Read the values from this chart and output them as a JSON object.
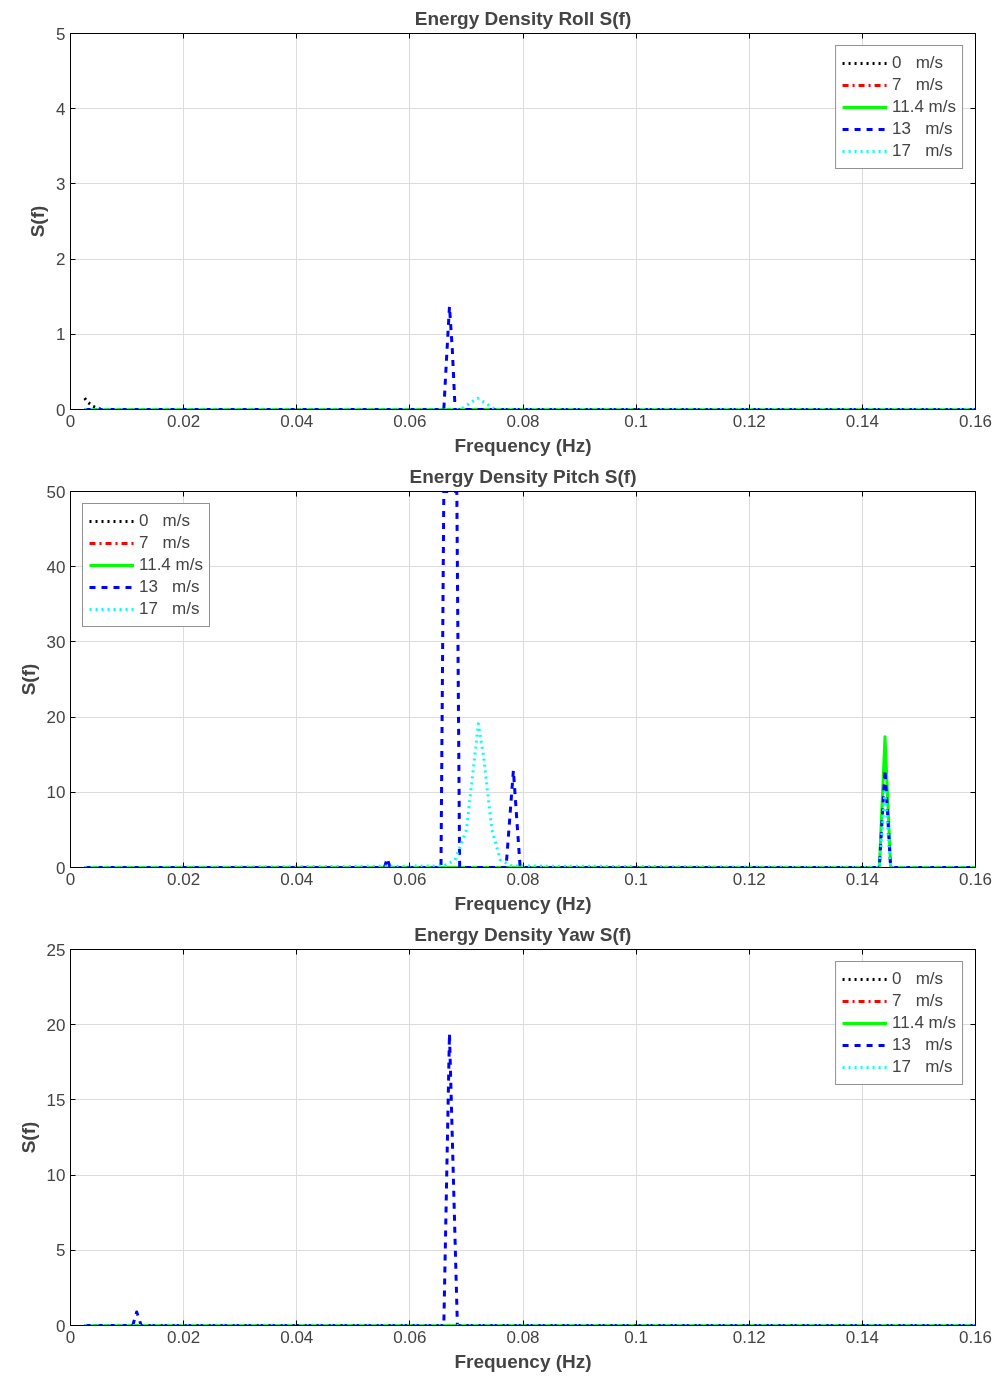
{
  "chart_data": [
    {
      "type": "line",
      "title": "Energy Density Roll S(f)",
      "xlabel": "Frequency (Hz)",
      "ylabel": "S(f)",
      "xlim": [
        0,
        0.16
      ],
      "ylim": [
        0,
        5
      ],
      "xticks": [
        0,
        0.02,
        0.04,
        0.06,
        0.08,
        0.1,
        0.12,
        0.14,
        0.16
      ],
      "yticks": [
        0,
        1,
        2,
        3,
        4,
        5
      ],
      "grid": true,
      "legend": "top right",
      "marker": "none",
      "series": [
        {
          "name": "0   m/s",
          "color": "#000000",
          "line_style": "dotted",
          "x": [
            0.0025,
            0.003,
            0.004,
            0.005,
            0.006
          ],
          "values": [
            0.15,
            0.1,
            0.04,
            0.01,
            0
          ]
        },
        {
          "name": "7   m/s",
          "color": "#ff0000",
          "line_style": "dashdot"
        },
        {
          "name": "11.4 m/s",
          "color": "#00ff00",
          "line_style": "solid",
          "x": [
            0.0025,
            0.16
          ],
          "values": [
            0,
            0
          ]
        },
        {
          "name": "13   m/s",
          "color": "#0000ff",
          "line_style": "dashed",
          "x": [
            0.0025,
            0.066,
            0.0665,
            0.067,
            0.0675,
            0.068,
            0.16
          ],
          "values": [
            0,
            0,
            0.7,
            1.37,
            0.8,
            0,
            0
          ]
        },
        {
          "name": "17   m/s",
          "color": "#00ffff",
          "line_style": "dotted",
          "x": [
            0.0025,
            0.069,
            0.0705,
            0.072,
            0.0735,
            0.075,
            0.16
          ],
          "values": [
            0,
            0,
            0.08,
            0.15,
            0.08,
            0,
            0
          ]
        }
      ]
    },
    {
      "type": "line",
      "title": "Energy Density Pitch S(f)",
      "xlabel": "Frequency (Hz)",
      "ylabel": "S(f)",
      "xlim": [
        0,
        0.16
      ],
      "ylim": [
        0,
        50
      ],
      "xticks": [
        0,
        0.02,
        0.04,
        0.06,
        0.08,
        0.1,
        0.12,
        0.14,
        0.16
      ],
      "yticks": [
        0,
        10,
        20,
        30,
        40,
        50
      ],
      "grid": true,
      "legend": "top left",
      "marker": "none",
      "series": [
        {
          "name": "0   m/s",
          "color": "#000000",
          "line_style": "dotted"
        },
        {
          "name": "7   m/s",
          "color": "#ff0000",
          "line_style": "dashdot"
        },
        {
          "name": "11.4 m/s",
          "color": "#00ff00",
          "line_style": "solid",
          "x": [
            0.0025,
            0.143,
            0.144,
            0.145,
            0.16
          ],
          "values": [
            0,
            0,
            17.4,
            0,
            0
          ]
        },
        {
          "name": "13   m/s",
          "color": "#0000ff",
          "line_style": "dashed",
          "x": [
            0.0025,
            0.0555,
            0.056,
            0.0565,
            0.0655,
            0.066,
            0.0683,
            0.0688,
            0.077,
            0.0783,
            0.0795,
            0.143,
            0.144,
            0.145,
            0.16
          ],
          "values": [
            0,
            0,
            1.2,
            0,
            0,
            50,
            50,
            0,
            0,
            12.9,
            0,
            0,
            13,
            0,
            0
          ]
        },
        {
          "name": "17   m/s",
          "color": "#00ffff",
          "line_style": "dotted",
          "x": [
            0.0025,
            0.066,
            0.068,
            0.07,
            0.0715,
            0.0721,
            0.073,
            0.0745,
            0.076,
            0.078,
            0.143,
            0.144,
            0.145,
            0.16
          ],
          "values": [
            0,
            0.2,
            1,
            5,
            15,
            19.1,
            15,
            5,
            1,
            0.2,
            0,
            10,
            0,
            0
          ]
        }
      ]
    },
    {
      "type": "line",
      "title": "Energy Density Yaw S(f)",
      "xlabel": "Frequency (Hz)",
      "ylabel": "S(f)",
      "xlim": [
        0,
        0.16
      ],
      "ylim": [
        0,
        25
      ],
      "xticks": [
        0,
        0.02,
        0.04,
        0.06,
        0.08,
        0.1,
        0.12,
        0.14,
        0.16
      ],
      "yticks": [
        0,
        5,
        10,
        15,
        20,
        25
      ],
      "grid": true,
      "legend": "top right",
      "marker": "none",
      "series": [
        {
          "name": "0   m/s",
          "color": "#000000",
          "line_style": "dotted"
        },
        {
          "name": "7   m/s",
          "color": "#ff0000",
          "line_style": "dashdot"
        },
        {
          "name": "11.4 m/s",
          "color": "#00ff00",
          "line_style": "solid",
          "x": [
            0.0025,
            0.16
          ],
          "values": [
            0,
            0
          ]
        },
        {
          "name": "13   m/s",
          "color": "#0000ff",
          "line_style": "dashed",
          "x": [
            0.0025,
            0.011,
            0.0117,
            0.0125,
            0.066,
            0.067,
            0.0684,
            0.16
          ],
          "values": [
            0,
            0,
            0.9,
            0,
            0,
            19.4,
            0,
            0
          ]
        },
        {
          "name": "17   m/s",
          "color": "#00ffff",
          "line_style": "dotted",
          "x": [
            0.0025,
            0.16
          ],
          "values": [
            0,
            0
          ]
        }
      ]
    }
  ]
}
